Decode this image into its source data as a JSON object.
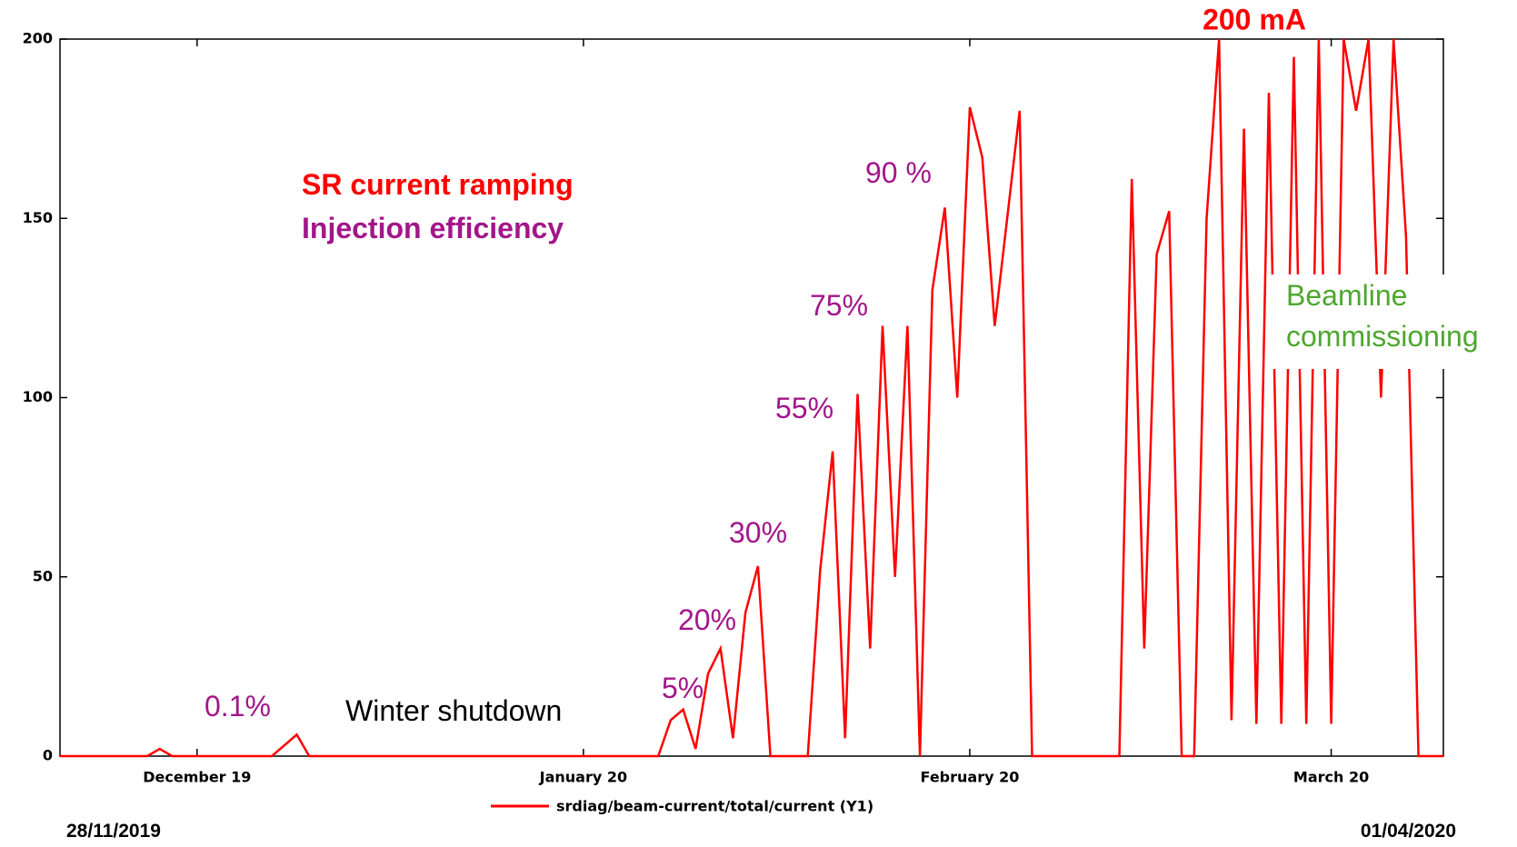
{
  "chart_data": {
    "type": "line",
    "title": "200 mA",
    "x": [
      "2019-11-20",
      "2019-11-27",
      "2019-11-28",
      "2019-11-29",
      "2019-12-07",
      "2019-12-08",
      "2019-12-09",
      "2019-12-10",
      "2020-01-07",
      "2020-01-08",
      "2020-01-09",
      "2020-01-10",
      "2020-01-11",
      "2020-01-12",
      "2020-01-13",
      "2020-01-14",
      "2020-01-15",
      "2020-01-16",
      "2020-01-19",
      "2020-01-20",
      "2020-01-21",
      "2020-01-22",
      "2020-01-23",
      "2020-01-24",
      "2020-01-25",
      "2020-01-26",
      "2020-01-27",
      "2020-01-28",
      "2020-01-29",
      "2020-01-30",
      "2020-01-31",
      "2020-02-01",
      "2020-02-02",
      "2020-02-03",
      "2020-02-04",
      "2020-02-05",
      "2020-02-06",
      "2020-02-13",
      "2020-02-14",
      "2020-02-15",
      "2020-02-16",
      "2020-02-17",
      "2020-02-18",
      "2020-02-19",
      "2020-02-20",
      "2020-02-21",
      "2020-02-22",
      "2020-02-23",
      "2020-02-24",
      "2020-02-25",
      "2020-02-26",
      "2020-02-27",
      "2020-02-28",
      "2020-02-29",
      "2020-03-01",
      "2020-03-02",
      "2020-03-03",
      "2020-03-04",
      "2020-03-05",
      "2020-03-06",
      "2020-03-07",
      "2020-03-08",
      "2020-03-10"
    ],
    "series": [
      {
        "name": "srdiag/beam-current/total/current (Y1)",
        "color": "#ff0000",
        "values": [
          0,
          0,
          2,
          0,
          0,
          3,
          6,
          0,
          0,
          10,
          13,
          2,
          23,
          30,
          5,
          40,
          53,
          0,
          0,
          52,
          85,
          5,
          101,
          30,
          120,
          50,
          120,
          0,
          130,
          153,
          100,
          181,
          167,
          120,
          150,
          180,
          0,
          0,
          161,
          30,
          140,
          152,
          0,
          0,
          150,
          200,
          10,
          175,
          9,
          185,
          9,
          195,
          9,
          200,
          9,
          200,
          180,
          200,
          100,
          200,
          145,
          0,
          0
        ]
      }
    ],
    "xlim": [
      "2019-11-20",
      "2020-03-10"
    ],
    "xticks": [
      {
        "value": "2019-12-01",
        "label": "December 19"
      },
      {
        "value": "2020-01-01",
        "label": "January 20"
      },
      {
        "value": "2020-02-01",
        "label": "February 20"
      },
      {
        "value": "2020-03-01",
        "label": "March 20"
      }
    ],
    "ylim": [
      0,
      200
    ],
    "yticks": [
      0,
      50,
      100,
      150,
      200
    ],
    "grid": false,
    "legend": "bottom",
    "annotations": [
      {
        "text": "SR current ramping",
        "color": "#ff0000"
      },
      {
        "text": "Injection efficiency",
        "color": "#a3168a"
      },
      {
        "text": "90 %",
        "color": "#a3168a"
      },
      {
        "text": "75%",
        "color": "#a3168a"
      },
      {
        "text": "55%",
        "color": "#a3168a"
      },
      {
        "text": "30%",
        "color": "#a3168a"
      },
      {
        "text": "20%",
        "color": "#a3168a"
      },
      {
        "text": "5%",
        "color": "#a3168a"
      },
      {
        "text": "0.1%",
        "color": "#a3168a"
      },
      {
        "text": "Winter shutdown",
        "color": "#000000"
      },
      {
        "text": "Beamline",
        "color": "#4ea72e"
      },
      {
        "text": "commissioning",
        "color": "#4ea72e"
      }
    ],
    "footer": {
      "start": "28/11/2019",
      "end": "01/04/2020"
    }
  }
}
